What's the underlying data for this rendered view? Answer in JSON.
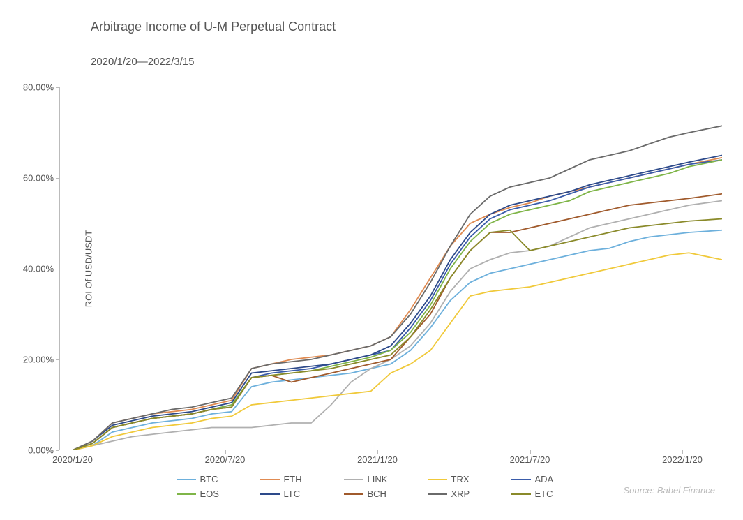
{
  "title": "Arbitrage Income of U-M Perpetual Contract",
  "subtitle": "2020/1/20—2022/3/15",
  "source": "Source:   Babel  Finance",
  "chart": {
    "type": "line",
    "ylabel": "ROI Of USD/USDT",
    "ylim": [
      0,
      80
    ],
    "yticks": [
      0,
      20,
      40,
      60,
      80
    ],
    "ytick_labels": [
      "0.00%",
      "20.00%",
      "40.00%",
      "60.00%",
      "80.00%"
    ],
    "xlim": [
      0,
      100
    ],
    "xticks": [
      2,
      25,
      48,
      71,
      94
    ],
    "xtick_labels": [
      "2020/1/20",
      "2020/7/20",
      "2021/1/20",
      "2021/7/20",
      "2022/1/20"
    ],
    "line_width": 1.8,
    "background_color": "#ffffff",
    "axis_color": "#bbbbbb",
    "text_color": "#555555",
    "title_fontsize": 18,
    "label_fontsize": 13,
    "series": [
      {
        "name": "BTC",
        "color": "#6db0dc",
        "x": [
          2,
          5,
          8,
          11,
          14,
          17,
          20,
          23,
          26,
          29,
          32,
          35,
          38,
          41,
          44,
          47,
          50,
          53,
          56,
          59,
          62,
          65,
          68,
          71,
          74,
          77,
          80,
          83,
          86,
          89,
          92,
          95,
          100
        ],
        "y": [
          0,
          1,
          4,
          5,
          6,
          6.5,
          7,
          8,
          8.5,
          14,
          15,
          15.5,
          16,
          16.5,
          17,
          18,
          19,
          22,
          27,
          33,
          37,
          39,
          40,
          41,
          42,
          43,
          44,
          44.5,
          46,
          47,
          47.5,
          48,
          48.5
        ]
      },
      {
        "name": "ETH",
        "color": "#e08b52",
        "x": [
          2,
          5,
          8,
          11,
          14,
          17,
          20,
          23,
          26,
          29,
          32,
          35,
          38,
          41,
          44,
          47,
          50,
          53,
          56,
          59,
          62,
          65,
          68,
          71,
          74,
          77,
          80,
          83,
          86,
          89,
          92,
          95,
          100
        ],
        "y": [
          0,
          2,
          6,
          7,
          8,
          8.5,
          9,
          10,
          11,
          18,
          19,
          20,
          20.5,
          21,
          22,
          23,
          25,
          31,
          38,
          45,
          50,
          52,
          53.5,
          54.5,
          56,
          57,
          58,
          59,
          60,
          61,
          62,
          63,
          64.5
        ]
      },
      {
        "name": "LINK",
        "color": "#b0b0b0",
        "x": [
          2,
          5,
          8,
          11,
          14,
          17,
          20,
          23,
          26,
          29,
          32,
          35,
          38,
          41,
          44,
          47,
          50,
          53,
          56,
          59,
          62,
          65,
          68,
          71,
          74,
          77,
          80,
          83,
          86,
          89,
          92,
          95,
          100
        ],
        "y": [
          0,
          1,
          2,
          3,
          3.5,
          4,
          4.5,
          5,
          5,
          5,
          5.5,
          6,
          6,
          10,
          15,
          18,
          20,
          23,
          28,
          35,
          40,
          42,
          43.5,
          44,
          45,
          47,
          49,
          50,
          51,
          52,
          53,
          54,
          55
        ]
      },
      {
        "name": "TRX",
        "color": "#f0c93a",
        "x": [
          2,
          5,
          8,
          11,
          14,
          17,
          20,
          23,
          26,
          29,
          32,
          35,
          38,
          41,
          44,
          47,
          50,
          53,
          56,
          59,
          62,
          65,
          68,
          71,
          74,
          77,
          80,
          83,
          86,
          89,
          92,
          95,
          100
        ],
        "y": [
          0,
          1,
          3,
          4,
          5,
          5.5,
          6,
          7,
          7.5,
          10,
          10.5,
          11,
          11.5,
          12,
          12.5,
          13,
          17,
          19,
          22,
          28,
          34,
          35,
          35.5,
          36,
          37,
          38,
          39,
          40,
          41,
          42,
          43,
          43.5,
          42
        ]
      },
      {
        "name": "ADA",
        "color": "#3a5caa",
        "x": [
          2,
          5,
          8,
          11,
          14,
          17,
          20,
          23,
          26,
          29,
          32,
          35,
          38,
          41,
          44,
          47,
          50,
          53,
          56,
          59,
          62,
          65,
          68,
          71,
          74,
          77,
          80,
          83,
          86,
          89,
          92,
          95,
          100
        ],
        "y": [
          0,
          1.5,
          5,
          6,
          7,
          7.5,
          8,
          9,
          10,
          16,
          17,
          17.5,
          18,
          19,
          20,
          21,
          22,
          27,
          33,
          41,
          47,
          51,
          53,
          54,
          55,
          56.5,
          58,
          59,
          60,
          61,
          62,
          63,
          64
        ]
      },
      {
        "name": "EOS",
        "color": "#7fb548",
        "x": [
          2,
          5,
          8,
          11,
          14,
          17,
          20,
          23,
          26,
          29,
          32,
          35,
          38,
          41,
          44,
          47,
          50,
          53,
          56,
          59,
          62,
          65,
          68,
          71,
          74,
          77,
          80,
          83,
          86,
          89,
          92,
          95,
          100
        ],
        "y": [
          0,
          1.5,
          5,
          6,
          7,
          7.5,
          8,
          9,
          10,
          16,
          16.5,
          17,
          17.5,
          18.5,
          19.5,
          20.5,
          22,
          26,
          32,
          40,
          46,
          50,
          52,
          53,
          54,
          55,
          57,
          58,
          59,
          60,
          61,
          62.5,
          64
        ]
      },
      {
        "name": "LTC",
        "color": "#2d4a8a",
        "x": [
          2,
          5,
          8,
          11,
          14,
          17,
          20,
          23,
          26,
          29,
          32,
          35,
          38,
          41,
          44,
          47,
          50,
          53,
          56,
          59,
          62,
          65,
          68,
          71,
          74,
          77,
          80,
          83,
          86,
          89,
          92,
          95,
          100
        ],
        "y": [
          0,
          2,
          5.5,
          6.5,
          7.5,
          8,
          8.5,
          9.5,
          10.5,
          17,
          17.5,
          18,
          18.5,
          19,
          20,
          21,
          23,
          28,
          34,
          42,
          48,
          52,
          54,
          55,
          56,
          57,
          58.5,
          59.5,
          60.5,
          61.5,
          62.5,
          63.5,
          65
        ]
      },
      {
        "name": "BCH",
        "color": "#a05a2c",
        "x": [
          2,
          5,
          8,
          11,
          14,
          17,
          20,
          23,
          26,
          29,
          32,
          35,
          38,
          41,
          44,
          47,
          50,
          53,
          56,
          59,
          62,
          65,
          68,
          71,
          74,
          77,
          80,
          83,
          86,
          89,
          92,
          95,
          100
        ],
        "y": [
          0,
          1.5,
          5,
          6,
          7,
          7.5,
          8,
          9,
          9.5,
          16,
          16.5,
          15,
          16,
          17,
          18,
          19,
          20,
          25,
          30,
          38,
          44,
          48,
          48,
          49,
          50,
          51,
          52,
          53,
          54,
          54.5,
          55,
          55.5,
          56.5
        ]
      },
      {
        "name": "XRP",
        "color": "#6a6a6a",
        "x": [
          2,
          5,
          8,
          11,
          14,
          17,
          20,
          23,
          26,
          29,
          32,
          35,
          38,
          41,
          44,
          47,
          50,
          53,
          56,
          59,
          62,
          65,
          68,
          71,
          74,
          77,
          80,
          83,
          86,
          89,
          92,
          95,
          100
        ],
        "y": [
          0,
          2,
          6,
          7,
          8,
          9,
          9.5,
          10.5,
          11.5,
          18,
          19,
          19.5,
          20,
          21,
          22,
          23,
          25,
          30,
          37,
          45,
          52,
          56,
          58,
          59,
          60,
          62,
          64,
          65,
          66,
          67.5,
          69,
          70,
          71.5
        ]
      },
      {
        "name": "ETC",
        "color": "#8a8a2a",
        "x": [
          2,
          5,
          8,
          11,
          14,
          17,
          20,
          23,
          26,
          29,
          32,
          35,
          38,
          41,
          44,
          47,
          50,
          53,
          56,
          59,
          62,
          65,
          68,
          71,
          74,
          77,
          80,
          83,
          86,
          89,
          92,
          95,
          100
        ],
        "y": [
          0,
          1.5,
          5,
          6,
          7,
          7.5,
          8,
          9,
          9.5,
          16,
          16.5,
          17,
          17.5,
          18,
          19,
          20,
          21,
          25,
          31,
          38,
          44,
          48,
          48.5,
          44,
          45,
          46,
          47,
          48,
          49,
          49.5,
          50,
          50.5,
          51
        ]
      }
    ],
    "legend_rows": [
      [
        "BTC",
        "ETH",
        "LINK",
        "TRX",
        "ADA"
      ],
      [
        "EOS",
        "LTC",
        "BCH",
        "XRP",
        "ETC"
      ]
    ]
  }
}
